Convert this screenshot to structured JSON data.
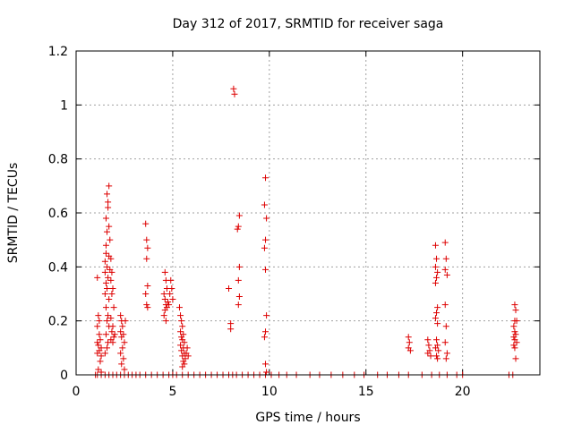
{
  "chart_data": {
    "type": "scatter",
    "title": "Day 312 of 2017, SRMTID for receiver saga",
    "xlabel": "GPS time / hours",
    "ylabel": "SRMTID / TECUs",
    "xlim": [
      0,
      24
    ],
    "ylim": [
      0,
      1.2
    ],
    "xticks": [
      0,
      5,
      10,
      15,
      20
    ],
    "yticks": [
      0,
      0.2,
      0.4,
      0.6,
      0.8,
      1,
      1.2
    ],
    "xtick_labels": [
      "0",
      "5",
      "10",
      "15",
      "20"
    ],
    "ytick_labels": [
      "0",
      "0.2",
      "0.4",
      "0.6",
      "0.8",
      "1",
      "1.2"
    ],
    "grid": true,
    "marker": "+",
    "color": "#dd0000",
    "series": [
      {
        "points": [
          [
            1.0,
            0.0
          ],
          [
            1.1,
            0.0
          ],
          [
            1.3,
            0.0
          ],
          [
            1.5,
            0.0
          ],
          [
            1.7,
            0.0
          ],
          [
            1.9,
            0.0
          ],
          [
            2.1,
            0.0
          ],
          [
            2.3,
            0.0
          ],
          [
            2.5,
            0.0
          ],
          [
            2.7,
            0.0
          ],
          [
            2.9,
            0.0
          ],
          [
            3.1,
            0.0
          ],
          [
            3.3,
            0.0
          ],
          [
            3.6,
            0.0
          ],
          [
            3.9,
            0.0
          ],
          [
            4.2,
            0.0
          ],
          [
            4.5,
            0.0
          ],
          [
            4.8,
            0.0
          ],
          [
            5.0,
            0.0
          ],
          [
            5.2,
            0.0
          ],
          [
            5.5,
            0.0
          ],
          [
            5.8,
            0.0
          ],
          [
            6.1,
            0.0
          ],
          [
            6.4,
            0.0
          ],
          [
            6.7,
            0.0
          ],
          [
            7.0,
            0.0
          ],
          [
            7.3,
            0.0
          ],
          [
            7.6,
            0.0
          ],
          [
            7.9,
            0.0
          ],
          [
            8.1,
            0.0
          ],
          [
            8.3,
            0.0
          ],
          [
            8.6,
            0.0
          ],
          [
            8.9,
            0.0
          ],
          [
            9.2,
            0.0
          ],
          [
            9.5,
            0.0
          ],
          [
            9.8,
            0.0
          ],
          [
            10.1,
            0.0
          ],
          [
            10.5,
            0.0
          ],
          [
            10.9,
            0.0
          ],
          [
            11.4,
            0.0
          ],
          [
            12.1,
            0.0
          ],
          [
            12.6,
            0.0
          ],
          [
            13.2,
            0.0
          ],
          [
            13.8,
            0.0
          ],
          [
            14.4,
            0.0
          ],
          [
            14.9,
            0.0
          ],
          [
            15.6,
            0.0
          ],
          [
            16.1,
            0.0
          ],
          [
            16.7,
            0.0
          ],
          [
            17.2,
            0.0
          ],
          [
            17.9,
            0.0
          ],
          [
            18.4,
            0.0
          ],
          [
            18.8,
            0.0
          ],
          [
            19.2,
            0.0
          ],
          [
            19.7,
            0.0
          ],
          [
            20.0,
            0.0
          ],
          [
            22.4,
            0.0
          ],
          [
            22.6,
            0.0
          ],
          [
            1.1,
            0.36
          ],
          [
            1.15,
            0.22
          ],
          [
            1.2,
            0.2
          ],
          [
            1.1,
            0.18
          ],
          [
            1.2,
            0.15
          ],
          [
            1.25,
            0.13
          ],
          [
            1.1,
            0.12
          ],
          [
            1.15,
            0.11
          ],
          [
            1.3,
            0.1
          ],
          [
            1.2,
            0.09
          ],
          [
            1.1,
            0.08
          ],
          [
            1.3,
            0.07
          ],
          [
            1.25,
            0.05
          ],
          [
            1.15,
            0.02
          ],
          [
            1.3,
            0.01
          ],
          [
            1.5,
            0.42
          ],
          [
            1.55,
            0.48
          ],
          [
            1.6,
            0.53
          ],
          [
            1.55,
            0.58
          ],
          [
            1.65,
            0.62
          ],
          [
            1.6,
            0.67
          ],
          [
            1.7,
            0.7
          ],
          [
            1.65,
            0.64
          ],
          [
            1.7,
            0.55
          ],
          [
            1.75,
            0.5
          ],
          [
            1.55,
            0.45
          ],
          [
            1.6,
            0.4
          ],
          [
            1.5,
            0.38
          ],
          [
            1.65,
            0.36
          ],
          [
            1.55,
            0.34
          ],
          [
            1.6,
            0.32
          ],
          [
            1.5,
            0.3
          ],
          [
            1.7,
            0.28
          ],
          [
            1.55,
            0.25
          ],
          [
            1.65,
            0.22
          ],
          [
            1.6,
            0.2
          ],
          [
            1.7,
            0.18
          ],
          [
            1.55,
            0.15
          ],
          [
            1.65,
            0.12
          ],
          [
            1.6,
            0.1
          ],
          [
            1.5,
            0.08
          ],
          [
            1.75,
            0.39
          ],
          [
            1.7,
            0.44
          ],
          [
            1.8,
            0.43
          ],
          [
            1.85,
            0.38
          ],
          [
            1.8,
            0.35
          ],
          [
            1.9,
            0.32
          ],
          [
            1.85,
            0.3
          ],
          [
            1.95,
            0.25
          ],
          [
            1.8,
            0.21
          ],
          [
            1.9,
            0.18
          ],
          [
            1.85,
            0.16
          ],
          [
            1.95,
            0.14
          ],
          [
            1.8,
            0.13
          ],
          [
            1.9,
            0.12
          ],
          [
            2.0,
            0.15
          ],
          [
            2.3,
            0.22
          ],
          [
            2.35,
            0.2
          ],
          [
            2.4,
            0.18
          ],
          [
            2.3,
            0.16
          ],
          [
            2.45,
            0.15
          ],
          [
            2.35,
            0.14
          ],
          [
            2.5,
            0.12
          ],
          [
            2.4,
            0.1
          ],
          [
            2.3,
            0.08
          ],
          [
            2.45,
            0.06
          ],
          [
            2.35,
            0.04
          ],
          [
            2.5,
            0.02
          ],
          [
            2.55,
            0.2
          ],
          [
            3.6,
            0.56
          ],
          [
            3.65,
            0.5
          ],
          [
            3.7,
            0.47
          ],
          [
            3.65,
            0.43
          ],
          [
            3.7,
            0.33
          ],
          [
            3.6,
            0.3
          ],
          [
            3.65,
            0.26
          ],
          [
            3.7,
            0.25
          ],
          [
            4.6,
            0.38
          ],
          [
            4.65,
            0.35
          ],
          [
            4.7,
            0.32
          ],
          [
            4.55,
            0.3
          ],
          [
            4.6,
            0.28
          ],
          [
            4.75,
            0.27
          ],
          [
            4.65,
            0.26
          ],
          [
            4.7,
            0.25
          ],
          [
            4.6,
            0.24
          ],
          [
            4.55,
            0.22
          ],
          [
            4.65,
            0.2
          ],
          [
            4.8,
            0.26
          ],
          [
            4.85,
            0.3
          ],
          [
            4.9,
            0.35
          ],
          [
            4.95,
            0.32
          ],
          [
            5.0,
            0.28
          ],
          [
            5.35,
            0.25
          ],
          [
            5.4,
            0.22
          ],
          [
            5.45,
            0.2
          ],
          [
            5.5,
            0.18
          ],
          [
            5.4,
            0.16
          ],
          [
            5.55,
            0.15
          ],
          [
            5.45,
            0.14
          ],
          [
            5.5,
            0.13
          ],
          [
            5.6,
            0.12
          ],
          [
            5.4,
            0.11
          ],
          [
            5.55,
            0.1
          ],
          [
            5.45,
            0.09
          ],
          [
            5.6,
            0.08
          ],
          [
            5.5,
            0.07
          ],
          [
            5.65,
            0.06
          ],
          [
            5.55,
            0.05
          ],
          [
            5.6,
            0.04
          ],
          [
            5.5,
            0.03
          ],
          [
            5.7,
            0.08
          ],
          [
            5.75,
            0.1
          ],
          [
            5.8,
            0.07
          ],
          [
            7.9,
            0.32
          ],
          [
            8.0,
            0.19
          ],
          [
            8.0,
            0.17
          ],
          [
            8.15,
            1.06
          ],
          [
            8.2,
            1.04
          ],
          [
            8.45,
            0.59
          ],
          [
            8.4,
            0.55
          ],
          [
            8.35,
            0.54
          ],
          [
            8.45,
            0.4
          ],
          [
            8.4,
            0.35
          ],
          [
            8.45,
            0.29
          ],
          [
            8.4,
            0.26
          ],
          [
            9.8,
            0.73
          ],
          [
            9.75,
            0.63
          ],
          [
            9.85,
            0.58
          ],
          [
            9.8,
            0.5
          ],
          [
            9.75,
            0.47
          ],
          [
            9.8,
            0.39
          ],
          [
            9.85,
            0.22
          ],
          [
            9.8,
            0.16
          ],
          [
            9.75,
            0.14
          ],
          [
            9.8,
            0.04
          ],
          [
            9.85,
            0.01
          ],
          [
            17.2,
            0.14
          ],
          [
            17.25,
            0.12
          ],
          [
            17.2,
            0.1
          ],
          [
            17.3,
            0.09
          ],
          [
            18.2,
            0.13
          ],
          [
            18.25,
            0.11
          ],
          [
            18.3,
            0.09
          ],
          [
            18.2,
            0.08
          ],
          [
            18.35,
            0.07
          ],
          [
            18.6,
            0.48
          ],
          [
            18.65,
            0.43
          ],
          [
            18.6,
            0.4
          ],
          [
            18.7,
            0.38
          ],
          [
            18.65,
            0.36
          ],
          [
            18.6,
            0.34
          ],
          [
            18.7,
            0.25
          ],
          [
            18.65,
            0.23
          ],
          [
            18.6,
            0.21
          ],
          [
            18.7,
            0.19
          ],
          [
            18.65,
            0.13
          ],
          [
            18.7,
            0.11
          ],
          [
            18.6,
            0.1
          ],
          [
            18.75,
            0.09
          ],
          [
            18.65,
            0.07
          ],
          [
            18.7,
            0.06
          ],
          [
            19.1,
            0.49
          ],
          [
            19.15,
            0.43
          ],
          [
            19.1,
            0.39
          ],
          [
            19.2,
            0.37
          ],
          [
            19.1,
            0.26
          ],
          [
            19.15,
            0.18
          ],
          [
            19.1,
            0.12
          ],
          [
            19.2,
            0.08
          ],
          [
            19.15,
            0.06
          ],
          [
            22.7,
            0.26
          ],
          [
            22.75,
            0.24
          ],
          [
            22.7,
            0.2
          ],
          [
            22.8,
            0.2
          ],
          [
            22.65,
            0.18
          ],
          [
            22.7,
            0.16
          ],
          [
            22.75,
            0.15
          ],
          [
            22.65,
            0.14
          ],
          [
            22.7,
            0.13
          ],
          [
            22.8,
            0.12
          ],
          [
            22.65,
            0.11
          ],
          [
            22.7,
            0.1
          ],
          [
            22.75,
            0.06
          ]
        ]
      }
    ]
  }
}
